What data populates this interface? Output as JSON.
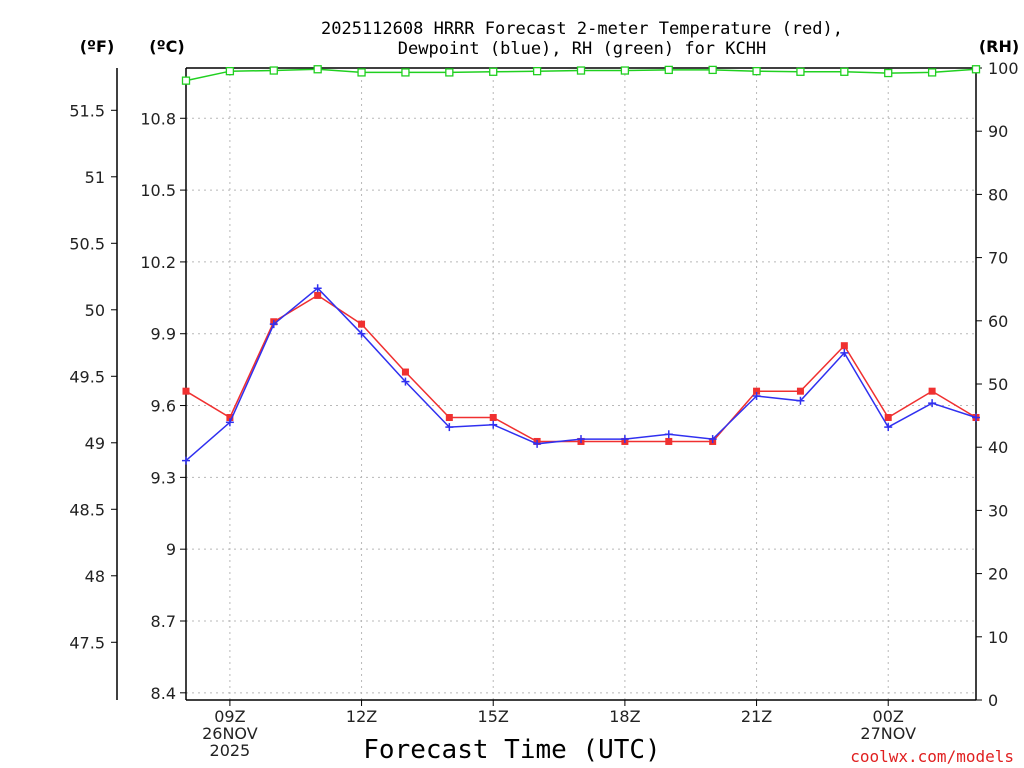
{
  "chart_data": {
    "type": "line",
    "title_line1": "2025112608 HRRR Forecast 2-meter Temperature (red),",
    "title_line2": "Dewpoint (blue), RH (green) for KCHH",
    "xlabel": "Forecast Time (UTC)",
    "credit": "coolwx.com/models",
    "units": {
      "fahrenheit": "(ºF)",
      "celsius": "(ºC)",
      "rh": "(RH)"
    },
    "x": [
      8,
      9,
      10,
      11,
      12,
      13,
      14,
      15,
      16,
      17,
      18,
      19,
      20,
      21,
      22,
      23,
      24,
      25,
      26
    ],
    "xlim": [
      8,
      26
    ],
    "x_ticks": [
      {
        "x": 9,
        "line1": "09Z",
        "line2": "26NOV",
        "line3": "2025"
      },
      {
        "x": 12,
        "line1": "12Z",
        "line2": "",
        "line3": ""
      },
      {
        "x": 15,
        "line1": "15Z",
        "line2": "",
        "line3": ""
      },
      {
        "x": 18,
        "line1": "18Z",
        "line2": "",
        "line3": ""
      },
      {
        "x": 21,
        "line1": "21Z",
        "line2": "",
        "line3": ""
      },
      {
        "x": 24,
        "line1": "00Z",
        "line2": "27NOV",
        "line3": ""
      }
    ],
    "celsius_axis": {
      "ylim": [
        8.37,
        11.01
      ],
      "ticks": [
        "8.4",
        "8.7",
        "9",
        "9.3",
        "9.6",
        "9.9",
        "10.2",
        "10.5",
        "10.8"
      ]
    },
    "fahrenheit_axis": {
      "ticks": [
        "47.5",
        "48",
        "48.5",
        "49",
        "49.5",
        "50",
        "50.5",
        "51",
        "51.5"
      ]
    },
    "rh_axis": {
      "ylim": [
        0,
        100
      ],
      "ticks": [
        "0",
        "10",
        "20",
        "30",
        "40",
        "50",
        "60",
        "70",
        "80",
        "90",
        "100"
      ]
    },
    "series": [
      {
        "name": "Temperature",
        "axis": "celsius",
        "color": "#f03030",
        "marker": "square",
        "values": [
          9.66,
          9.55,
          9.95,
          10.06,
          9.94,
          9.74,
          9.55,
          9.55,
          9.45,
          9.45,
          9.45,
          9.45,
          9.45,
          9.66,
          9.66,
          9.85,
          9.55,
          9.66,
          9.55
        ]
      },
      {
        "name": "Dewpoint",
        "axis": "celsius",
        "color": "#3030f0",
        "marker": "plus",
        "values": [
          9.37,
          9.53,
          9.94,
          10.09,
          9.9,
          9.7,
          9.51,
          9.52,
          9.44,
          9.46,
          9.46,
          9.48,
          9.46,
          9.64,
          9.62,
          9.82,
          9.51,
          9.61,
          9.55
        ]
      },
      {
        "name": "RH",
        "axis": "rh",
        "color": "#20d020",
        "marker": "open-square",
        "values": [
          98,
          99.5,
          99.6,
          99.8,
          99.3,
          99.3,
          99.3,
          99.4,
          99.5,
          99.6,
          99.6,
          99.7,
          99.7,
          99.5,
          99.4,
          99.4,
          99.2,
          99.3,
          99.8
        ]
      }
    ]
  }
}
